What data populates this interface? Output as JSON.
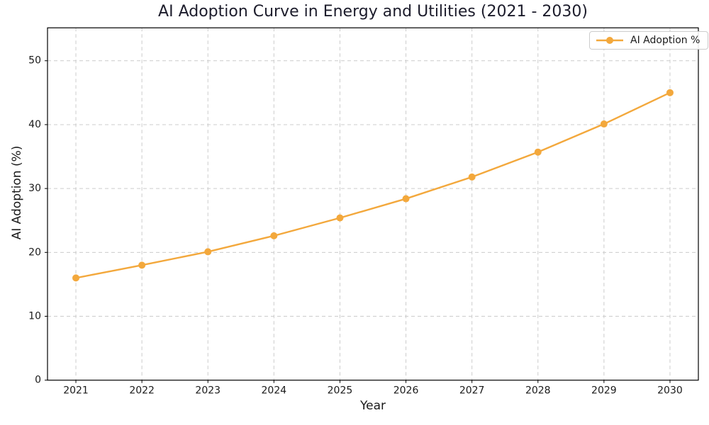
{
  "chart_data": {
    "type": "line",
    "title": "AI Adoption Curve in Energy and Utilities (2021 - 2030)",
    "xlabel": "Year",
    "ylabel": "AI Adoption (%)",
    "categories": [
      2021,
      2022,
      2023,
      2024,
      2025,
      2026,
      2027,
      2028,
      2029,
      2030
    ],
    "series": [
      {
        "name": "AI Adoption %",
        "color": "#F3A83C",
        "marker": "circle",
        "values": [
          16.0,
          18.0,
          20.1,
          22.6,
          25.4,
          28.4,
          31.8,
          35.7,
          40.1,
          45.0
        ]
      }
    ],
    "xlim": [
      2020.57,
      2030.43
    ],
    "ylim": [
      0,
      55.15
    ],
    "yticks": [
      0,
      10,
      20,
      30,
      40,
      50
    ],
    "grid": true,
    "grid_style": "dashed",
    "grid_color": "#cccccc",
    "axis_color": "#000000",
    "tick_label_color": "#1a1a1a",
    "title_color": "#1c1c2b",
    "legend_position": "upper right",
    "legend_label": "AI Adoption %"
  }
}
